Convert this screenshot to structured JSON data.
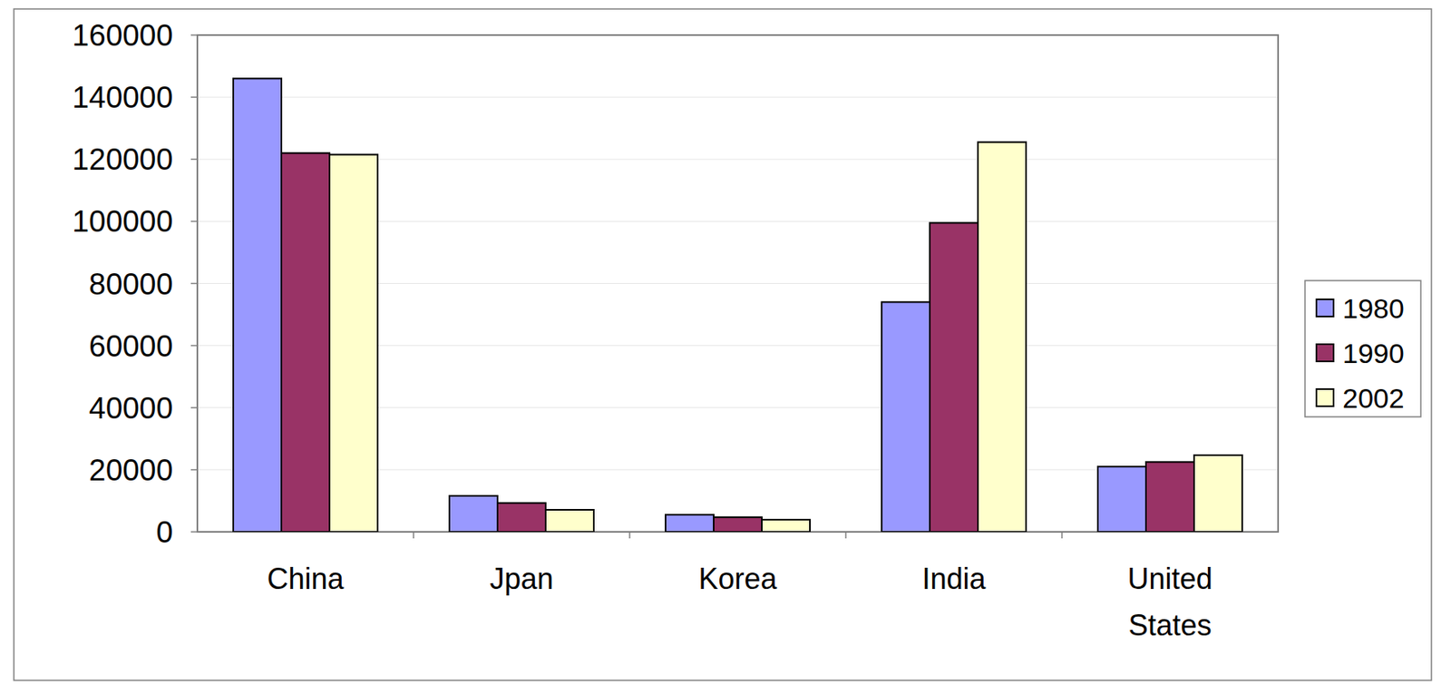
{
  "chart_data": {
    "type": "bar",
    "categories": [
      "China",
      "Jpan",
      "Korea",
      "India",
      "United States"
    ],
    "series": [
      {
        "name": "1980",
        "color": "#9999ff",
        "values": [
          146000,
          11600,
          5500,
          74000,
          21000
        ]
      },
      {
        "name": "1990",
        "color": "#993366",
        "values": [
          122000,
          9300,
          4700,
          99500,
          22500
        ]
      },
      {
        "name": "2002",
        "color": "#ffffcc",
        "values": [
          121500,
          7100,
          3900,
          125500,
          24700
        ]
      }
    ],
    "ylim": [
      0,
      160000
    ],
    "yticks": [
      0,
      20000,
      40000,
      60000,
      80000,
      100000,
      120000,
      140000,
      160000
    ],
    "grid": true,
    "legend": "right"
  }
}
